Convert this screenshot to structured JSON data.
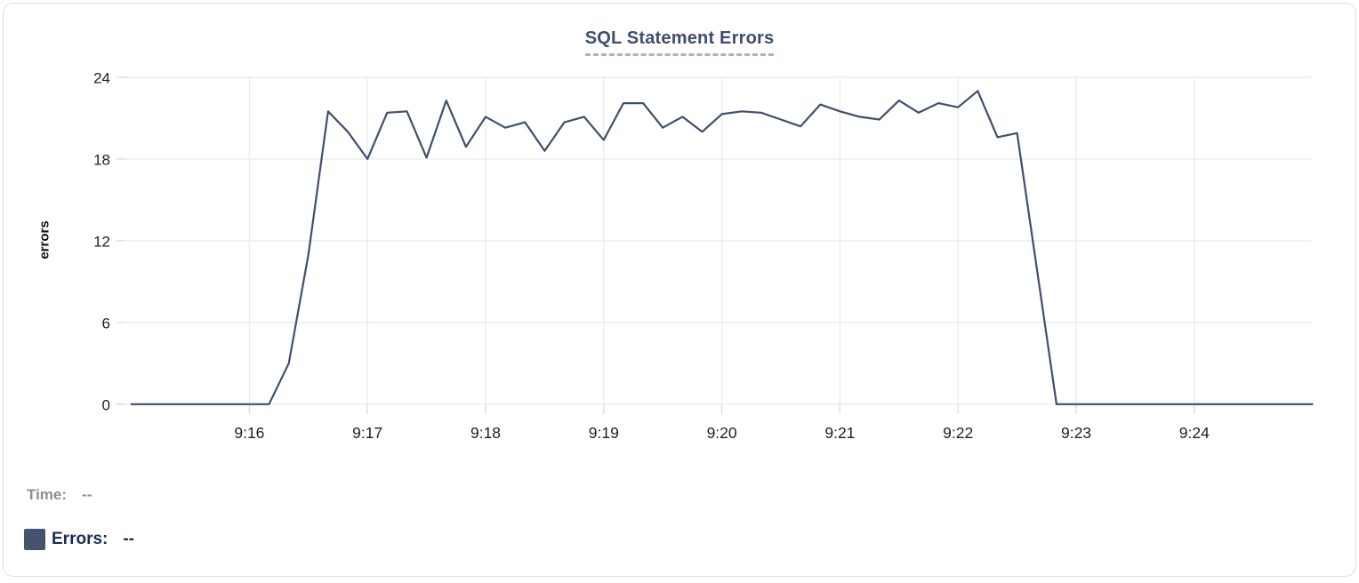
{
  "chart": {
    "title": "SQL Statement Errors",
    "ylabel": "errors"
  },
  "legend": {
    "time_label": "Time:",
    "time_value": "--",
    "errors_label": "Errors:",
    "errors_value": "--",
    "swatch_color": "#44546e"
  },
  "colors": {
    "line": "#3f4f6e",
    "title": "#3d4e70",
    "title_underline": "#a9b2c6",
    "axis_text": "#1f1f1f",
    "grid": "#ececec",
    "tick": "#dedede",
    "time_text": "#8e8e8e",
    "errors_text": "#1c2c55",
    "card_border": "#dcdfe3"
  },
  "chart_data": {
    "type": "line",
    "title": "SQL Statement Errors",
    "xlabel": "",
    "ylabel": "errors",
    "ylim": [
      0,
      24
    ],
    "yticks": [
      0,
      6,
      12,
      18,
      24
    ],
    "xticks": [
      "9:16",
      "9:17",
      "9:18",
      "9:19",
      "9:20",
      "9:21",
      "9:22",
      "9:23",
      "9:24"
    ],
    "x_range": [
      "9:15:00",
      "9:25:00"
    ],
    "grid": true,
    "legend_position": "bottom-left",
    "series": [
      {
        "name": "Errors",
        "color": "#3f4f6e",
        "points": [
          [
            "9:15:00",
            0
          ],
          [
            "9:15:10",
            0
          ],
          [
            "9:15:20",
            0
          ],
          [
            "9:15:30",
            0
          ],
          [
            "9:15:40",
            0
          ],
          [
            "9:15:50",
            0
          ],
          [
            "9:16:00",
            0
          ],
          [
            "9:16:10",
            0
          ],
          [
            "9:16:20",
            3
          ],
          [
            "9:16:30",
            11
          ],
          [
            "9:16:40",
            21.5
          ],
          [
            "9:16:50",
            20
          ],
          [
            "9:17:00",
            18
          ],
          [
            "9:17:10",
            21.4
          ],
          [
            "9:17:20",
            21.5
          ],
          [
            "9:17:30",
            18.1
          ],
          [
            "9:17:40",
            22.3
          ],
          [
            "9:17:50",
            18.9
          ],
          [
            "9:18:00",
            21.1
          ],
          [
            "9:18:10",
            20.3
          ],
          [
            "9:18:20",
            20.7
          ],
          [
            "9:18:30",
            18.6
          ],
          [
            "9:18:40",
            20.7
          ],
          [
            "9:18:50",
            21.1
          ],
          [
            "9:19:00",
            19.4
          ],
          [
            "9:19:10",
            22.1
          ],
          [
            "9:19:20",
            22.1
          ],
          [
            "9:19:30",
            20.3
          ],
          [
            "9:19:40",
            21.1
          ],
          [
            "9:19:50",
            20
          ],
          [
            "9:20:00",
            21.3
          ],
          [
            "9:20:10",
            21.5
          ],
          [
            "9:20:20",
            21.4
          ],
          [
            "9:20:30",
            20.9
          ],
          [
            "9:20:40",
            20.4
          ],
          [
            "9:20:50",
            22
          ],
          [
            "9:21:00",
            21.5
          ],
          [
            "9:21:10",
            21.1
          ],
          [
            "9:21:20",
            20.9
          ],
          [
            "9:21:30",
            22.3
          ],
          [
            "9:21:40",
            21.4
          ],
          [
            "9:21:50",
            22.1
          ],
          [
            "9:22:00",
            21.8
          ],
          [
            "9:22:10",
            23
          ],
          [
            "9:22:20",
            19.6
          ],
          [
            "9:22:30",
            19.9
          ],
          [
            "9:22:40",
            10
          ],
          [
            "9:22:50",
            0
          ],
          [
            "9:23:00",
            0
          ],
          [
            "9:23:10",
            0
          ],
          [
            "9:23:20",
            0
          ],
          [
            "9:23:30",
            0
          ],
          [
            "9:23:40",
            0
          ],
          [
            "9:23:50",
            0
          ],
          [
            "9:24:00",
            0
          ],
          [
            "9:24:10",
            0
          ],
          [
            "9:24:20",
            0
          ],
          [
            "9:24:30",
            0
          ],
          [
            "9:24:40",
            0
          ],
          [
            "9:24:50",
            0
          ],
          [
            "9:25:00",
            0
          ]
        ]
      }
    ]
  }
}
